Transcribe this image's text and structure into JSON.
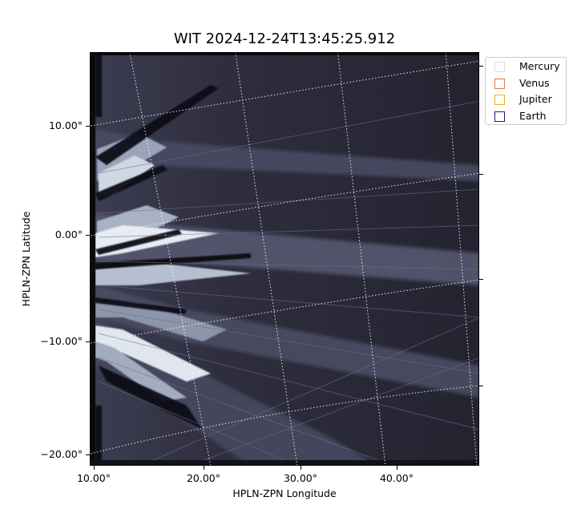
{
  "title": "WIT 2024-12-24T13:45:25.912",
  "xlabel": "HPLN-ZPN Longitude",
  "ylabel": "HPLN-ZPN Latitude",
  "x_ticks": [
    "10.00°",
    "20.00°",
    "30.00°",
    "40.00°"
  ],
  "y_ticks": [
    "10.00°",
    "0.00°",
    "−10.00°",
    "−20.00°"
  ],
  "legend": [
    {
      "label": "Mercury",
      "color": "#dddddd"
    },
    {
      "label": "Venus",
      "color": "#e07b3a"
    },
    {
      "label": "Jupiter",
      "color": "#e8b420"
    },
    {
      "label": "Earth",
      "color": "#1a1a7a"
    }
  ],
  "colormap": "bone",
  "grid": "dotted white coordinate grid"
}
